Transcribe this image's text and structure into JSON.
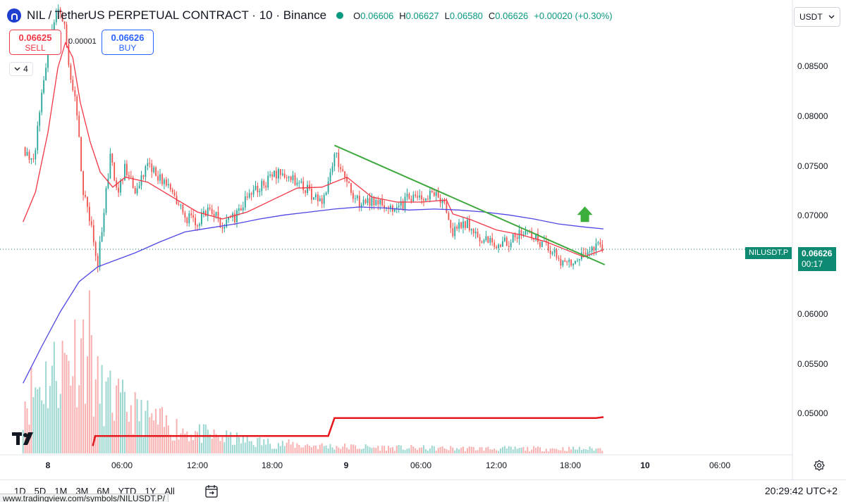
{
  "header": {
    "symbol_title": "NIL / TetherUS PERPETUAL CONTRACT · 10 · Binance",
    "ohlc": {
      "o_label": "O",
      "o": "0.06606",
      "h_label": "H",
      "h": "0.06627",
      "l_label": "L",
      "l": "0.06580",
      "c_label": "C",
      "c": "0.06626",
      "change": "+0.00020 (+0.30%)"
    }
  },
  "trade": {
    "sell_price": "0.06625",
    "sell_label": "SELL",
    "spread": "0.00001",
    "buy_price": "0.06626",
    "buy_label": "BUY"
  },
  "indicators_count": "4",
  "currency": "USDT",
  "price_scale": [
    "0.08500",
    "0.08000",
    "0.07500",
    "0.07000",
    "0.06000",
    "0.05500",
    "0.05000"
  ],
  "last_price": {
    "symbol": "NILUSDT.P",
    "price": "0.06626",
    "countdown": "00:17"
  },
  "time_axis": [
    {
      "label": "8",
      "bold": true
    },
    {
      "label": "06:00"
    },
    {
      "label": "12:00"
    },
    {
      "label": "18:00"
    },
    {
      "label": "9",
      "bold": true
    },
    {
      "label": "06:00"
    },
    {
      "label": "12:00"
    },
    {
      "label": "18:00"
    },
    {
      "label": "10",
      "bold": true
    },
    {
      "label": "06:00"
    }
  ],
  "bottom": {
    "ranges": [
      "1D",
      "5D",
      "1M",
      "3M",
      "6M",
      "YTD",
      "1Y",
      "All"
    ],
    "clock": "20:29:42 UTC+2",
    "url": "www.tradingview.com/symbols/NILUSDT.P/"
  },
  "colors": {
    "up": "#26a69a",
    "down": "#ef5350",
    "ema_fast": "#f23645",
    "ema_slow": "#4f46e5",
    "trendline": "#3fa83f",
    "arrow": "#3cae3c",
    "volume_line": "#e5181e"
  },
  "chart_data": {
    "type": "line",
    "title": "",
    "x_label": "",
    "y_label": "",
    "y_range": [
      0.0465,
      0.0895
    ],
    "x_range_hours": [
      -2.1,
      51.7
    ],
    "x_unit": "hours since 8th 00:00",
    "price_path": {
      "hours": [
        -2.0,
        -1.2,
        -0.6,
        0.0,
        0.5,
        1.0,
        1.4,
        1.8,
        2.2,
        2.8,
        3.4,
        4.0,
        4.5,
        5.0,
        5.6,
        6.2,
        7.0,
        8.0,
        9.0,
        10.0,
        11.0,
        12.0,
        13.0,
        14.0,
        15.0,
        16.0,
        17.0,
        18.0,
        19.0,
        20.0,
        21.0,
        22.0,
        22.5,
        23.0,
        24.0,
        24.4,
        25.0,
        26.0,
        27.0,
        28.0,
        29.0,
        30.0,
        31.0,
        32.0,
        32.5,
        33.0,
        34.0,
        35.0,
        36.0,
        37.0,
        38.0,
        39.0,
        40.0,
        41.0,
        42.0,
        42.5,
        43.0,
        44.0,
        44.6
      ],
      "close": [
        0.0765,
        0.0745,
        0.081,
        0.086,
        0.0895,
        0.0905,
        0.088,
        0.084,
        0.0815,
        0.0725,
        0.069,
        0.065,
        0.07,
        0.0755,
        0.0715,
        0.0745,
        0.072,
        0.0745,
        0.0735,
        0.072,
        0.0695,
        0.069,
        0.0705,
        0.0685,
        0.0695,
        0.0715,
        0.0725,
        0.0735,
        0.074,
        0.073,
        0.072,
        0.071,
        0.073,
        0.076,
        0.073,
        0.072,
        0.071,
        0.0712,
        0.0706,
        0.07,
        0.0715,
        0.071,
        0.072,
        0.0705,
        0.068,
        0.069,
        0.0685,
        0.067,
        0.0668,
        0.067,
        0.068,
        0.0675,
        0.0665,
        0.0652,
        0.0648,
        0.0655,
        0.066,
        0.0664,
        0.0663
      ]
    },
    "series": [
      {
        "name": "",
        "color": "#f23645",
        "hours": [
          -2.0,
          -1.0,
          0.0,
          0.8,
          1.4,
          2.0,
          2.6,
          3.4,
          4.2,
          5.2,
          6.2,
          8.0,
          10.0,
          12.0,
          14.0,
          16.0,
          18.0,
          20.0,
          22.0,
          24.0,
          26.0,
          28.0,
          30.0,
          32.0,
          32.5,
          34.0,
          36.0,
          38.0,
          40.0,
          42.0,
          43.0,
          44.6
        ],
        "values": [
          0.069,
          0.072,
          0.078,
          0.0845,
          0.087,
          0.0855,
          0.081,
          0.077,
          0.074,
          0.0725,
          0.0735,
          0.073,
          0.0715,
          0.07,
          0.0693,
          0.07,
          0.0712,
          0.0724,
          0.0725,
          0.0735,
          0.0715,
          0.071,
          0.071,
          0.0712,
          0.0698,
          0.0692,
          0.0682,
          0.0677,
          0.067,
          0.066,
          0.0655,
          0.0662
        ]
      },
      {
        "name": "",
        "color": "#4f46e5",
        "hours": [
          -2.0,
          -0.5,
          1.0,
          2.5,
          4.0,
          5.5,
          7.0,
          9.0,
          11.0,
          13.0,
          15.0,
          17.0,
          19.0,
          21.0,
          23.0,
          25.0,
          27.0,
          29.0,
          31.0,
          33.0,
          35.0,
          37.0,
          39.0,
          41.0,
          43.0,
          44.6
        ],
        "values": [
          0.0528,
          0.0565,
          0.06,
          0.063,
          0.0645,
          0.0652,
          0.0659,
          0.067,
          0.068,
          0.0684,
          0.0688,
          0.0693,
          0.0697,
          0.07,
          0.0703,
          0.0705,
          0.0704,
          0.0702,
          0.0703,
          0.0702,
          0.07,
          0.0697,
          0.0693,
          0.0688,
          0.0685,
          0.0683
        ]
      },
      {
        "name": "",
        "color": "#e5181e",
        "hours": [
          3.6,
          3.8,
          22.5,
          23.0,
          44.0,
          44.6
        ],
        "values": [
          0.0465,
          0.0475,
          0.0475,
          0.0493,
          0.0493,
          0.0494
        ]
      }
    ],
    "trendline": {
      "from": {
        "hours": 23.0,
        "value": 0.0767
      },
      "to": {
        "hours": 44.7,
        "value": 0.0647
      }
    },
    "arrow": {
      "direction": "up",
      "hours": 43.1,
      "value": 0.069
    },
    "volume": {
      "max_hours": 3.5,
      "peak_relative": 1.0
    },
    "last_price_line": 0.06626
  }
}
